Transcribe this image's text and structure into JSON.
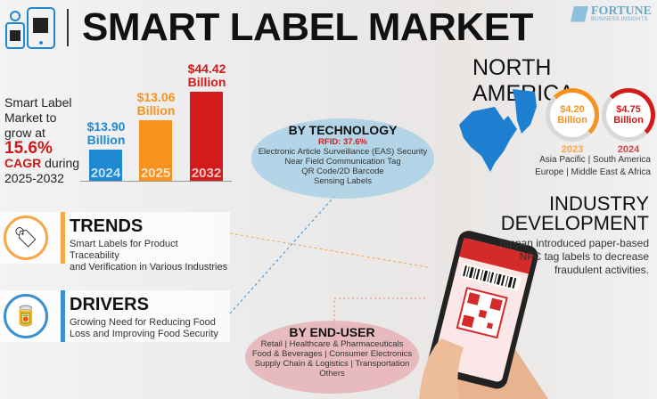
{
  "header": {
    "title": "SMART LABEL MARKET",
    "logo_text": "FORTUNE",
    "logo_subtext": "BUSINESS INSIGHTS"
  },
  "growth": {
    "line1": "Smart Label",
    "line2": "Market to",
    "line3": "grow at",
    "cagr": "15.6%",
    "cagr_label": "CAGR",
    "during": " during",
    "period": "2025-2032"
  },
  "chart_data": {
    "type": "bar",
    "categories": [
      "2024",
      "2025",
      "2032"
    ],
    "values": [
      13.9,
      13.06,
      44.42
    ],
    "labels": [
      "$13.90",
      "$13.06",
      "$44.42"
    ],
    "unit": "Billion",
    "colors": [
      "#1e88d2",
      "#f7921e",
      "#d21b1b"
    ]
  },
  "trends": {
    "title": "TRENDS",
    "text_line1": "Smart Labels for Product Traceability",
    "text_line2": "and Verification in Various Industries",
    "accent": "#f7a64a"
  },
  "drivers": {
    "title": "DRIVERS",
    "text_line1": "Growing Need for Reducing Food",
    "text_line2": "Loss and Improving Food Security",
    "accent": "#3b8fcf"
  },
  "technology": {
    "title": "BY TECHNOLOGY",
    "highlight": "RFID: 37.6%",
    "items": [
      "Electronic Article Surveillance (EAS) Security",
      "Near Field Communication Tag",
      "QR Code/2D Barcode",
      "Sensing Labels"
    ]
  },
  "end_user": {
    "title": "BY END-USER",
    "lines": [
      "Retail | Healthcare & Pharmaceuticals",
      "Food & Beverages | Consumer Electronics",
      "Supply Chain & Logistics | Transportation",
      "Others"
    ]
  },
  "north_america": {
    "title": "NORTH AMERICA",
    "values": [
      {
        "value": "$4.20",
        "unit": "Billion",
        "year": "2023",
        "color": "#f7921e",
        "fill": 0.3
      },
      {
        "value": "$4.75",
        "unit": "Billion",
        "year": "2024",
        "color": "#d21b1b",
        "fill": 0.35
      }
    ],
    "regions_line1": "Asia Pacific | South America",
    "regions_line2": "Europe | Middle East & Africa"
  },
  "industry": {
    "title_line1": "INDUSTRY",
    "title_line2": "DEVELOPMENT",
    "text_line1": "Toppan introduced paper-based",
    "text_line2": "NFC tag labels to decrease",
    "text_line3": "fraudulent activities."
  }
}
